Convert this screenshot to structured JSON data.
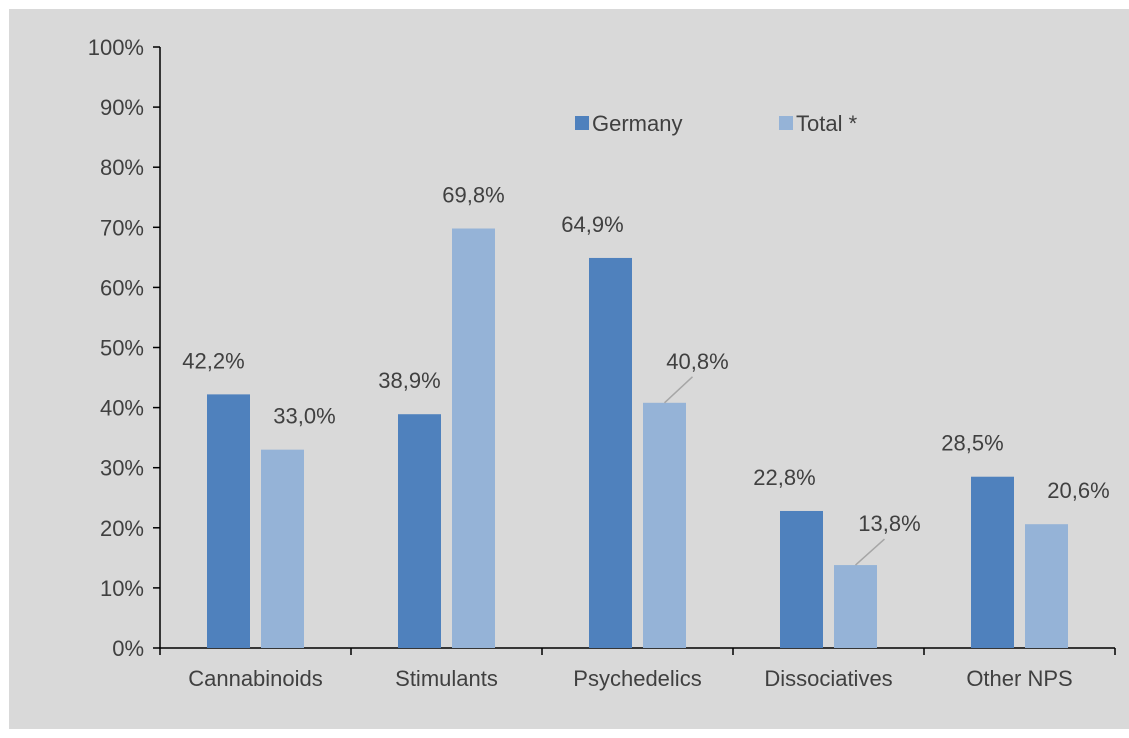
{
  "chart_data": {
    "type": "bar",
    "categories": [
      "Cannabinoids",
      "Stimulants",
      "Psychedelics",
      "Dissociatives",
      "Other NPS"
    ],
    "series": [
      {
        "name": "Germany",
        "values": [
          42.2,
          38.9,
          64.9,
          22.8,
          28.5
        ],
        "labels": [
          "42,2%",
          "38,9%",
          "64,9%",
          "22,8%",
          "28,5%"
        ],
        "color": "#4f81bd"
      },
      {
        "name": "Total *",
        "values": [
          33.0,
          69.8,
          40.8,
          13.8,
          20.6
        ],
        "labels": [
          "33,0%",
          "69,8%",
          "40,8%",
          "13,8%",
          "20,6%"
        ],
        "color": "#95b3d7"
      }
    ],
    "ylim": [
      0,
      100
    ],
    "yticks": [
      "0%",
      "10%",
      "20%",
      "30%",
      "40%",
      "50%",
      "60%",
      "70%",
      "80%",
      "90%",
      "100%"
    ],
    "legend_position": "top-center",
    "grid": false,
    "background": "#d9d9d9",
    "title": "",
    "xlabel": "",
    "ylabel": ""
  }
}
